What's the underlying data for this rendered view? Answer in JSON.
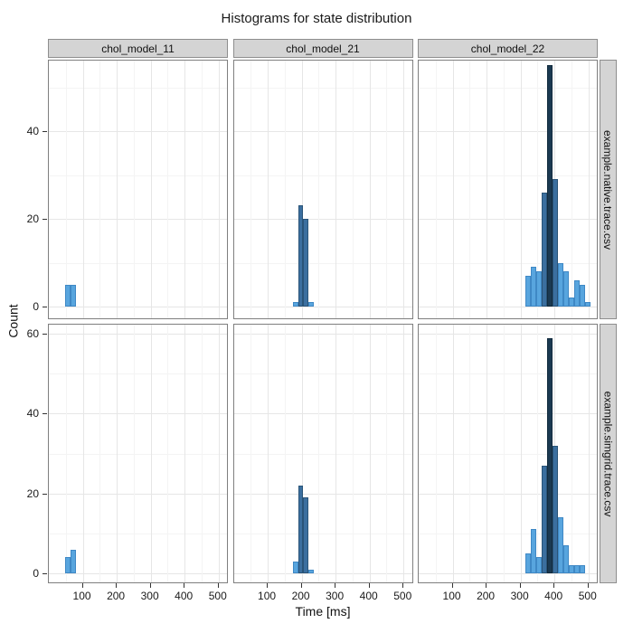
{
  "title": "Histograms for state distribution",
  "x_axis": {
    "label": "Time [ms]",
    "ticks": [
      100,
      200,
      300,
      400,
      500
    ],
    "minor_ticks": [
      50,
      150,
      250,
      350,
      450
    ],
    "range_ms": [
      0,
      530
    ]
  },
  "y_axis": {
    "label": "Count"
  },
  "facets": {
    "columns": [
      "chol_model_11",
      "chol_model_21",
      "chol_model_22"
    ],
    "rows": [
      "example.native.trace.csv",
      "example.simgrid.trace.csv"
    ]
  },
  "colors": {
    "light": "#58a5de",
    "light_border": "#3f88c5",
    "mid": "#3b6f9f",
    "mid_border": "#2a5478",
    "dark": "#1b3951",
    "dark_border": "#122b3e",
    "strip_bg": "#d4d4d4",
    "strip_border": "#8e8e8e",
    "panel_border": "#7f7f7f",
    "grid_major": "#e6e6e6",
    "grid_minor": "#f4f4f4"
  },
  "chart_data": {
    "type": "bar",
    "subtype": "faceted-histogram",
    "title": "Histograms for state distribution",
    "xlabel": "Time [ms]",
    "ylabel": "Count",
    "facet_columns": [
      "chol_model_11",
      "chol_model_21",
      "chol_model_22"
    ],
    "facet_rows": [
      "example.native.trace.csv",
      "example.simgrid.trace.csv"
    ],
    "row_axes": [
      {
        "ticks": [
          0,
          20,
          40
        ],
        "minor": [
          10,
          30,
          50
        ],
        "ylim": [
          0,
          56
        ]
      },
      {
        "ticks": [
          0,
          20,
          40,
          60
        ],
        "minor": [
          10,
          30,
          50
        ],
        "ylim": [
          0,
          63
        ]
      }
    ],
    "panels": [
      {
        "row": 0,
        "col": 0,
        "bars": [
          {
            "x": 48,
            "w": 16,
            "count": 5,
            "shade": "light"
          },
          {
            "x": 64,
            "w": 16,
            "count": 5,
            "shade": "light"
          }
        ]
      },
      {
        "row": 0,
        "col": 1,
        "bars": [
          {
            "x": 175,
            "w": 15,
            "count": 1,
            "shade": "light"
          },
          {
            "x": 190,
            "w": 15,
            "count": 23,
            "shade": "mid"
          },
          {
            "x": 205,
            "w": 15,
            "count": 20,
            "shade": "mid"
          },
          {
            "x": 220,
            "w": 15,
            "count": 1,
            "shade": "light"
          }
        ]
      },
      {
        "row": 0,
        "col": 2,
        "bars": [
          {
            "x": 313,
            "w": 16,
            "count": 7,
            "shade": "light"
          },
          {
            "x": 329,
            "w": 16,
            "count": 9,
            "shade": "light"
          },
          {
            "x": 345,
            "w": 16,
            "count": 8,
            "shade": "light"
          },
          {
            "x": 361,
            "w": 16,
            "count": 26,
            "shade": "mid"
          },
          {
            "x": 377,
            "w": 16,
            "count": 55,
            "shade": "dark"
          },
          {
            "x": 393,
            "w": 16,
            "count": 29,
            "shade": "mid"
          },
          {
            "x": 409,
            "w": 16,
            "count": 10,
            "shade": "light"
          },
          {
            "x": 425,
            "w": 16,
            "count": 8,
            "shade": "light"
          },
          {
            "x": 441,
            "w": 16,
            "count": 2,
            "shade": "light"
          },
          {
            "x": 457,
            "w": 16,
            "count": 6,
            "shade": "light"
          },
          {
            "x": 473,
            "w": 16,
            "count": 5,
            "shade": "light"
          },
          {
            "x": 489,
            "w": 16,
            "count": 1,
            "shade": "light"
          }
        ]
      },
      {
        "row": 1,
        "col": 0,
        "bars": [
          {
            "x": 48,
            "w": 16,
            "count": 4,
            "shade": "light"
          },
          {
            "x": 64,
            "w": 16,
            "count": 6,
            "shade": "light"
          }
        ]
      },
      {
        "row": 1,
        "col": 1,
        "bars": [
          {
            "x": 175,
            "w": 15,
            "count": 3,
            "shade": "light"
          },
          {
            "x": 190,
            "w": 15,
            "count": 22,
            "shade": "mid"
          },
          {
            "x": 205,
            "w": 15,
            "count": 19,
            "shade": "mid"
          },
          {
            "x": 220,
            "w": 15,
            "count": 1,
            "shade": "light"
          }
        ]
      },
      {
        "row": 1,
        "col": 2,
        "bars": [
          {
            "x": 315,
            "w": 16,
            "count": 5,
            "shade": "light"
          },
          {
            "x": 331,
            "w": 16,
            "count": 11,
            "shade": "light"
          },
          {
            "x": 347,
            "w": 16,
            "count": 4,
            "shade": "light"
          },
          {
            "x": 363,
            "w": 16,
            "count": 27,
            "shade": "mid"
          },
          {
            "x": 379,
            "w": 16,
            "count": 59,
            "shade": "dark"
          },
          {
            "x": 395,
            "w": 16,
            "count": 32,
            "shade": "mid"
          },
          {
            "x": 411,
            "w": 16,
            "count": 14,
            "shade": "light"
          },
          {
            "x": 427,
            "w": 16,
            "count": 7,
            "shade": "light"
          },
          {
            "x": 443,
            "w": 16,
            "count": 2,
            "shade": "light"
          },
          {
            "x": 459,
            "w": 16,
            "count": 2,
            "shade": "light"
          },
          {
            "x": 475,
            "w": 16,
            "count": 2,
            "shade": "light"
          }
        ]
      }
    ]
  }
}
